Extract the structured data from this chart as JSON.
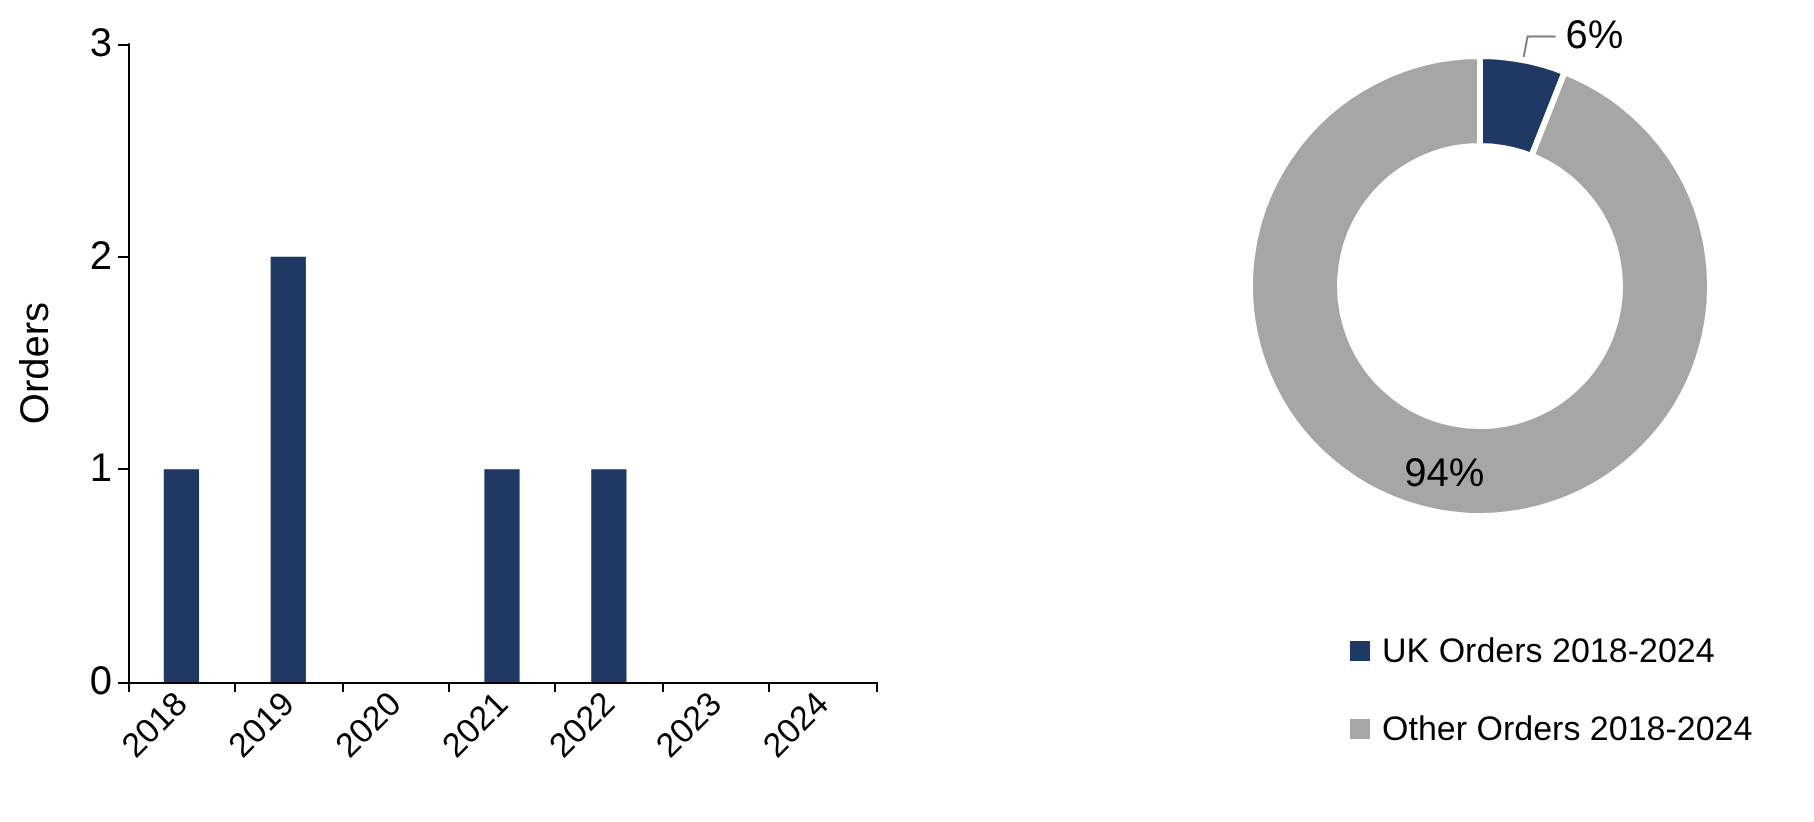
{
  "chart_data": [
    {
      "type": "bar",
      "categories": [
        "2018",
        "2019",
        "2020",
        "2021",
        "2022",
        "2023",
        "2024"
      ],
      "values": [
        1,
        2,
        0,
        1,
        1,
        0,
        0
      ],
      "color": "#1f3864",
      "ylabel": "Orders",
      "ylim": [
        0,
        3
      ],
      "yticks": [
        0,
        1,
        2,
        3
      ],
      "grid": false
    },
    {
      "type": "donut",
      "categories": [
        "UK Orders 2018-2024",
        "Other Orders 2018-2024"
      ],
      "values": [
        6,
        94
      ],
      "colors": [
        "#1f3864",
        "#a6a6a6"
      ],
      "value_labels": [
        "6%",
        "94%"
      ],
      "legend": "bottom right"
    }
  ]
}
